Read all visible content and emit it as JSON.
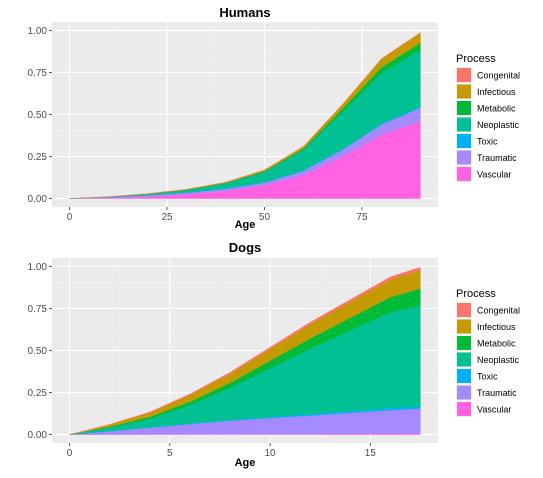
{
  "chart_data": [
    {
      "type": "area",
      "stacked": true,
      "title": "Humans",
      "xlabel": "Age",
      "ylabel": "",
      "xlim": [
        -4.5,
        94.5
      ],
      "ylim": [
        -0.05,
        1.05
      ],
      "xticks": [
        0,
        25,
        50,
        75
      ],
      "yticks": [
        0.0,
        0.25,
        0.5,
        0.75,
        1.0
      ],
      "xtick_labels": [
        "0",
        "25",
        "50",
        "75"
      ],
      "ytick_labels": [
        "0.00",
        "0.25",
        "0.50",
        "0.75",
        "1.00"
      ],
      "grid": true,
      "legend_position": "right",
      "legend_title": "Process",
      "x": [
        0,
        10,
        20,
        30,
        40,
        50,
        60,
        70,
        80,
        90
      ],
      "series": [
        {
          "name": "Vascular",
          "color": "#FF61E0",
          "values": [
            0.0,
            0.004,
            0.012,
            0.025,
            0.045,
            0.08,
            0.14,
            0.25,
            0.38,
            0.46
          ]
        },
        {
          "name": "Traumatic",
          "color": "#A58AFF",
          "values": [
            0.0,
            0.004,
            0.007,
            0.01,
            0.012,
            0.015,
            0.025,
            0.04,
            0.06,
            0.08
          ]
        },
        {
          "name": "Toxic",
          "color": "#00B0F6",
          "values": [
            0.0,
            0.0,
            0.001,
            0.001,
            0.002,
            0.002,
            0.003,
            0.004,
            0.005,
            0.005
          ]
        },
        {
          "name": "Neoplastic",
          "color": "#00C094",
          "values": [
            0.0,
            0.002,
            0.006,
            0.014,
            0.03,
            0.06,
            0.12,
            0.22,
            0.3,
            0.34
          ]
        },
        {
          "name": "Metabolic",
          "color": "#00BA38",
          "values": [
            0.0,
            0.0,
            0.001,
            0.002,
            0.003,
            0.005,
            0.01,
            0.02,
            0.035,
            0.04
          ]
        },
        {
          "name": "Infectious",
          "color": "#C49A00",
          "values": [
            0.0,
            0.001,
            0.002,
            0.003,
            0.005,
            0.008,
            0.012,
            0.025,
            0.05,
            0.06
          ]
        },
        {
          "name": "Congenital",
          "color": "#F8766D",
          "values": [
            0.0,
            0.0,
            0.0,
            0.0,
            0.0,
            0.0,
            0.0,
            0.001,
            0.002,
            0.003
          ]
        }
      ]
    },
    {
      "type": "area",
      "stacked": true,
      "title": "Dogs",
      "xlabel": "Age",
      "ylabel": "",
      "xlim": [
        -0.875,
        18.375
      ],
      "ylim": [
        -0.05,
        1.05
      ],
      "xticks": [
        0,
        5,
        10,
        15
      ],
      "yticks": [
        0.0,
        0.25,
        0.5,
        0.75,
        1.0
      ],
      "xtick_labels": [
        "0",
        "5",
        "10",
        "15"
      ],
      "ytick_labels": [
        "0.00",
        "0.25",
        "0.50",
        "0.75",
        "1.00"
      ],
      "grid": true,
      "legend_position": "right",
      "legend_title": "Process",
      "x": [
        0,
        2,
        4,
        6,
        8,
        10,
        12,
        14,
        16,
        17.5
      ],
      "series": [
        {
          "name": "Vascular",
          "color": "#FF61E0",
          "values": [
            0.0,
            0.0,
            0.001,
            0.002,
            0.002,
            0.003,
            0.003,
            0.004,
            0.005,
            0.005
          ]
        },
        {
          "name": "Traumatic",
          "color": "#A58AFF",
          "values": [
            0.0,
            0.02,
            0.04,
            0.06,
            0.08,
            0.095,
            0.11,
            0.125,
            0.14,
            0.15
          ]
        },
        {
          "name": "Toxic",
          "color": "#00B0F6",
          "values": [
            0.0,
            0.001,
            0.002,
            0.003,
            0.005,
            0.006,
            0.008,
            0.01,
            0.012,
            0.013
          ]
        },
        {
          "name": "Neoplastic",
          "color": "#00C094",
          "values": [
            0.0,
            0.02,
            0.05,
            0.11,
            0.19,
            0.29,
            0.39,
            0.48,
            0.57,
            0.6
          ]
        },
        {
          "name": "Metabolic",
          "color": "#00BA38",
          "values": [
            0.0,
            0.006,
            0.012,
            0.02,
            0.03,
            0.045,
            0.06,
            0.075,
            0.09,
            0.1
          ]
        },
        {
          "name": "Infectious",
          "color": "#C49A00",
          "values": [
            0.0,
            0.012,
            0.025,
            0.04,
            0.055,
            0.07,
            0.085,
            0.095,
            0.105,
            0.11
          ]
        },
        {
          "name": "Congenital",
          "color": "#F8766D",
          "values": [
            0.0,
            0.002,
            0.004,
            0.006,
            0.008,
            0.01,
            0.012,
            0.014,
            0.016,
            0.017
          ]
        }
      ]
    }
  ]
}
